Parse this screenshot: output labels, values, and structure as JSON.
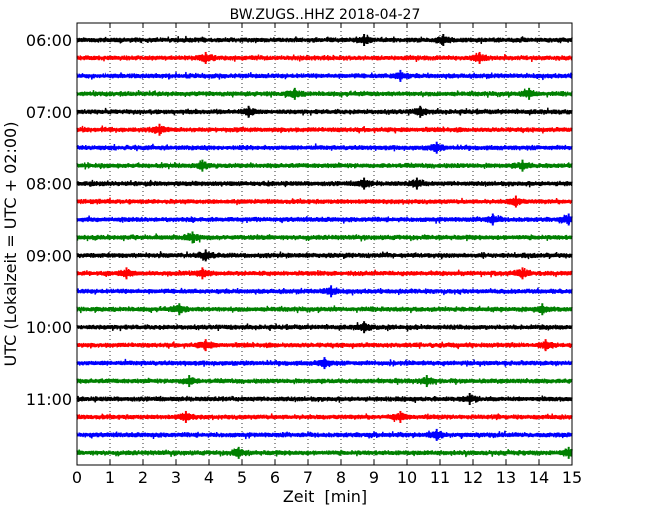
{
  "chart_data": {
    "type": "line",
    "title": "BW.ZUGS..HHZ 2018-04-27",
    "xlabel": "Zeit  [min]",
    "ylabel": "UTC (Lokalzeit = UTC + 02:00)",
    "xlim": [
      0,
      15
    ],
    "x_ticks": [
      "0",
      "1",
      "2",
      "3",
      "4",
      "5",
      "6",
      "7",
      "8",
      "9",
      "10",
      "11",
      "12",
      "13",
      "14",
      "15"
    ],
    "y_tick_labels": [
      "06:00",
      "07:00",
      "08:00",
      "09:00",
      "10:00",
      "11:00"
    ],
    "grid": "vertical dotted lines at each minute",
    "trace_minutes": 15,
    "first_trace_time": "06:00",
    "last_trace_time": "11:45",
    "colors": [
      "#000000",
      "#ff0000",
      "#0000ff",
      "#008000"
    ],
    "series": [
      {
        "start": "06:00",
        "color": "#000000",
        "events": [
          8.7,
          11.1
        ]
      },
      {
        "start": "06:15",
        "color": "#ff0000",
        "events": [
          3.9,
          12.2
        ]
      },
      {
        "start": "06:30",
        "color": "#0000ff",
        "events": [
          9.8
        ]
      },
      {
        "start": "06:45",
        "color": "#008000",
        "events": [
          6.6,
          13.7
        ]
      },
      {
        "start": "07:00",
        "color": "#000000",
        "events": [
          5.2,
          10.4
        ]
      },
      {
        "start": "07:15",
        "color": "#ff0000",
        "events": [
          2.5
        ]
      },
      {
        "start": "07:30",
        "color": "#0000ff",
        "events": [
          10.9
        ]
      },
      {
        "start": "07:45",
        "color": "#008000",
        "events": [
          3.8,
          13.5
        ]
      },
      {
        "start": "08:00",
        "color": "#000000",
        "events": [
          8.7,
          10.3
        ]
      },
      {
        "start": "08:15",
        "color": "#ff0000",
        "events": [
          13.3
        ]
      },
      {
        "start": "08:30",
        "color": "#0000ff",
        "events": [
          12.6,
          14.9
        ]
      },
      {
        "start": "08:45",
        "color": "#008000",
        "events": [
          3.5
        ]
      },
      {
        "start": "09:00",
        "color": "#000000",
        "events": [
          3.9
        ]
      },
      {
        "start": "09:15",
        "color": "#ff0000",
        "events": [
          1.5,
          3.8,
          13.5
        ]
      },
      {
        "start": "09:30",
        "color": "#0000ff",
        "events": [
          7.7
        ]
      },
      {
        "start": "09:45",
        "color": "#008000",
        "events": [
          3.1,
          14.1
        ]
      },
      {
        "start": "10:00",
        "color": "#000000",
        "events": [
          8.7
        ]
      },
      {
        "start": "10:15",
        "color": "#ff0000",
        "events": [
          3.9,
          14.2
        ]
      },
      {
        "start": "10:30",
        "color": "#0000ff",
        "events": [
          7.5
        ]
      },
      {
        "start": "10:45",
        "color": "#008000",
        "events": [
          3.4,
          10.6
        ]
      },
      {
        "start": "11:00",
        "color": "#000000",
        "events": [
          11.9
        ]
      },
      {
        "start": "11:15",
        "color": "#ff0000",
        "events": [
          3.3,
          9.8
        ]
      },
      {
        "start": "11:30",
        "color": "#0000ff",
        "events": [
          10.9
        ]
      },
      {
        "start": "11:45",
        "color": "#008000",
        "events": [
          4.9,
          14.9
        ]
      }
    ]
  }
}
